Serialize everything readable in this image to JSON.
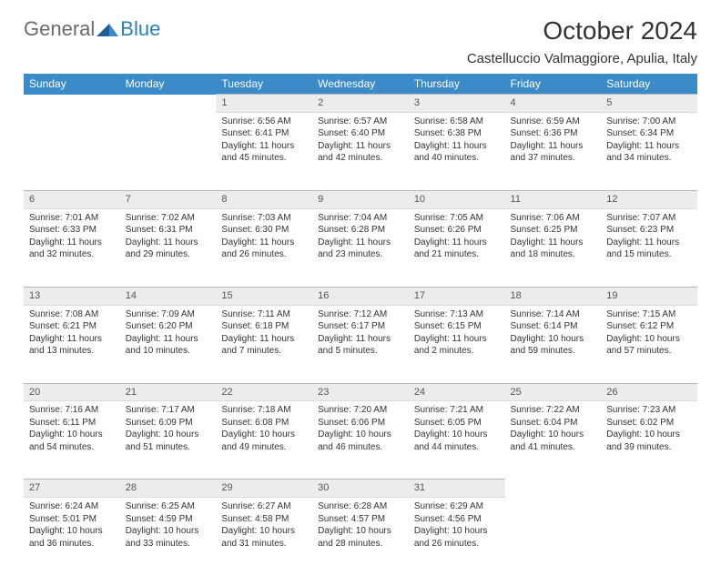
{
  "logo": {
    "text_general": "General",
    "text_blue": "Blue"
  },
  "title": "October 2024",
  "location": "Castelluccio Valmaggiore, Apulia, Italy",
  "colors": {
    "header_bg": "#3b8bc9",
    "header_text": "#ffffff",
    "daynum_bg": "#ececec",
    "daynum_border_top": "#b8b8b8",
    "page_bg": "#ffffff",
    "text": "#333333",
    "logo_gray": "#6b6b6b",
    "logo_blue": "#2a7fba"
  },
  "typography": {
    "title_fontsize": 28,
    "location_fontsize": 15,
    "header_fontsize": 12,
    "daynum_fontsize": 11,
    "body_fontsize": 10
  },
  "weekdays": [
    "Sunday",
    "Monday",
    "Tuesday",
    "Wednesday",
    "Thursday",
    "Friday",
    "Saturday"
  ],
  "weeks": [
    [
      null,
      null,
      {
        "n": "1",
        "sr": "Sunrise: 6:56 AM",
        "ss": "Sunset: 6:41 PM",
        "dl": "Daylight: 11 hours and 45 minutes."
      },
      {
        "n": "2",
        "sr": "Sunrise: 6:57 AM",
        "ss": "Sunset: 6:40 PM",
        "dl": "Daylight: 11 hours and 42 minutes."
      },
      {
        "n": "3",
        "sr": "Sunrise: 6:58 AM",
        "ss": "Sunset: 6:38 PM",
        "dl": "Daylight: 11 hours and 40 minutes."
      },
      {
        "n": "4",
        "sr": "Sunrise: 6:59 AM",
        "ss": "Sunset: 6:36 PM",
        "dl": "Daylight: 11 hours and 37 minutes."
      },
      {
        "n": "5",
        "sr": "Sunrise: 7:00 AM",
        "ss": "Sunset: 6:34 PM",
        "dl": "Daylight: 11 hours and 34 minutes."
      }
    ],
    [
      {
        "n": "6",
        "sr": "Sunrise: 7:01 AM",
        "ss": "Sunset: 6:33 PM",
        "dl": "Daylight: 11 hours and 32 minutes."
      },
      {
        "n": "7",
        "sr": "Sunrise: 7:02 AM",
        "ss": "Sunset: 6:31 PM",
        "dl": "Daylight: 11 hours and 29 minutes."
      },
      {
        "n": "8",
        "sr": "Sunrise: 7:03 AM",
        "ss": "Sunset: 6:30 PM",
        "dl": "Daylight: 11 hours and 26 minutes."
      },
      {
        "n": "9",
        "sr": "Sunrise: 7:04 AM",
        "ss": "Sunset: 6:28 PM",
        "dl": "Daylight: 11 hours and 23 minutes."
      },
      {
        "n": "10",
        "sr": "Sunrise: 7:05 AM",
        "ss": "Sunset: 6:26 PM",
        "dl": "Daylight: 11 hours and 21 minutes."
      },
      {
        "n": "11",
        "sr": "Sunrise: 7:06 AM",
        "ss": "Sunset: 6:25 PM",
        "dl": "Daylight: 11 hours and 18 minutes."
      },
      {
        "n": "12",
        "sr": "Sunrise: 7:07 AM",
        "ss": "Sunset: 6:23 PM",
        "dl": "Daylight: 11 hours and 15 minutes."
      }
    ],
    [
      {
        "n": "13",
        "sr": "Sunrise: 7:08 AM",
        "ss": "Sunset: 6:21 PM",
        "dl": "Daylight: 11 hours and 13 minutes."
      },
      {
        "n": "14",
        "sr": "Sunrise: 7:09 AM",
        "ss": "Sunset: 6:20 PM",
        "dl": "Daylight: 11 hours and 10 minutes."
      },
      {
        "n": "15",
        "sr": "Sunrise: 7:11 AM",
        "ss": "Sunset: 6:18 PM",
        "dl": "Daylight: 11 hours and 7 minutes."
      },
      {
        "n": "16",
        "sr": "Sunrise: 7:12 AM",
        "ss": "Sunset: 6:17 PM",
        "dl": "Daylight: 11 hours and 5 minutes."
      },
      {
        "n": "17",
        "sr": "Sunrise: 7:13 AM",
        "ss": "Sunset: 6:15 PM",
        "dl": "Daylight: 11 hours and 2 minutes."
      },
      {
        "n": "18",
        "sr": "Sunrise: 7:14 AM",
        "ss": "Sunset: 6:14 PM",
        "dl": "Daylight: 10 hours and 59 minutes."
      },
      {
        "n": "19",
        "sr": "Sunrise: 7:15 AM",
        "ss": "Sunset: 6:12 PM",
        "dl": "Daylight: 10 hours and 57 minutes."
      }
    ],
    [
      {
        "n": "20",
        "sr": "Sunrise: 7:16 AM",
        "ss": "Sunset: 6:11 PM",
        "dl": "Daylight: 10 hours and 54 minutes."
      },
      {
        "n": "21",
        "sr": "Sunrise: 7:17 AM",
        "ss": "Sunset: 6:09 PM",
        "dl": "Daylight: 10 hours and 51 minutes."
      },
      {
        "n": "22",
        "sr": "Sunrise: 7:18 AM",
        "ss": "Sunset: 6:08 PM",
        "dl": "Daylight: 10 hours and 49 minutes."
      },
      {
        "n": "23",
        "sr": "Sunrise: 7:20 AM",
        "ss": "Sunset: 6:06 PM",
        "dl": "Daylight: 10 hours and 46 minutes."
      },
      {
        "n": "24",
        "sr": "Sunrise: 7:21 AM",
        "ss": "Sunset: 6:05 PM",
        "dl": "Daylight: 10 hours and 44 minutes."
      },
      {
        "n": "25",
        "sr": "Sunrise: 7:22 AM",
        "ss": "Sunset: 6:04 PM",
        "dl": "Daylight: 10 hours and 41 minutes."
      },
      {
        "n": "26",
        "sr": "Sunrise: 7:23 AM",
        "ss": "Sunset: 6:02 PM",
        "dl": "Daylight: 10 hours and 39 minutes."
      }
    ],
    [
      {
        "n": "27",
        "sr": "Sunrise: 6:24 AM",
        "ss": "Sunset: 5:01 PM",
        "dl": "Daylight: 10 hours and 36 minutes."
      },
      {
        "n": "28",
        "sr": "Sunrise: 6:25 AM",
        "ss": "Sunset: 4:59 PM",
        "dl": "Daylight: 10 hours and 33 minutes."
      },
      {
        "n": "29",
        "sr": "Sunrise: 6:27 AM",
        "ss": "Sunset: 4:58 PM",
        "dl": "Daylight: 10 hours and 31 minutes."
      },
      {
        "n": "30",
        "sr": "Sunrise: 6:28 AM",
        "ss": "Sunset: 4:57 PM",
        "dl": "Daylight: 10 hours and 28 minutes."
      },
      {
        "n": "31",
        "sr": "Sunrise: 6:29 AM",
        "ss": "Sunset: 4:56 PM",
        "dl": "Daylight: 10 hours and 26 minutes."
      },
      null,
      null
    ]
  ]
}
